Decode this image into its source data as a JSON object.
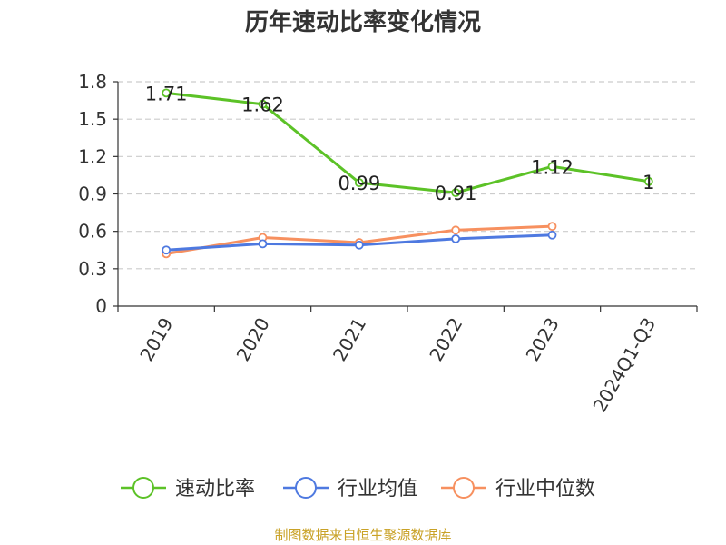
{
  "chart_data": {
    "type": "line",
    "title": "历年速动比率变化情况",
    "categories": [
      "2019",
      "2020",
      "2021",
      "2022",
      "2023",
      "2024Q1-Q3"
    ],
    "y_ticks": [
      "0",
      "0.3",
      "0.6",
      "0.9",
      "1.2",
      "1.5",
      "1.8"
    ],
    "ylim": [
      0,
      1.8
    ],
    "grid": "horizontal-dashed",
    "legend_position": "bottom",
    "series": [
      {
        "name": "速动比率",
        "color": "#5cc227",
        "values": [
          1.71,
          1.62,
          0.99,
          0.91,
          1.12,
          1.0
        ],
        "labels": [
          "1.71",
          "1.62",
          "0.99",
          "0.91",
          "1.12",
          "1"
        ]
      },
      {
        "name": "行业均值",
        "color": "#4e79e0",
        "values": [
          0.45,
          0.5,
          0.49,
          0.54,
          0.57,
          null
        ]
      },
      {
        "name": "行业中位数",
        "color": "#f7905f",
        "values": [
          0.42,
          0.55,
          0.51,
          0.61,
          0.64,
          null
        ]
      }
    ],
    "source": "制图数据来自恒生聚源数据库",
    "source_color": "#c9a227"
  }
}
